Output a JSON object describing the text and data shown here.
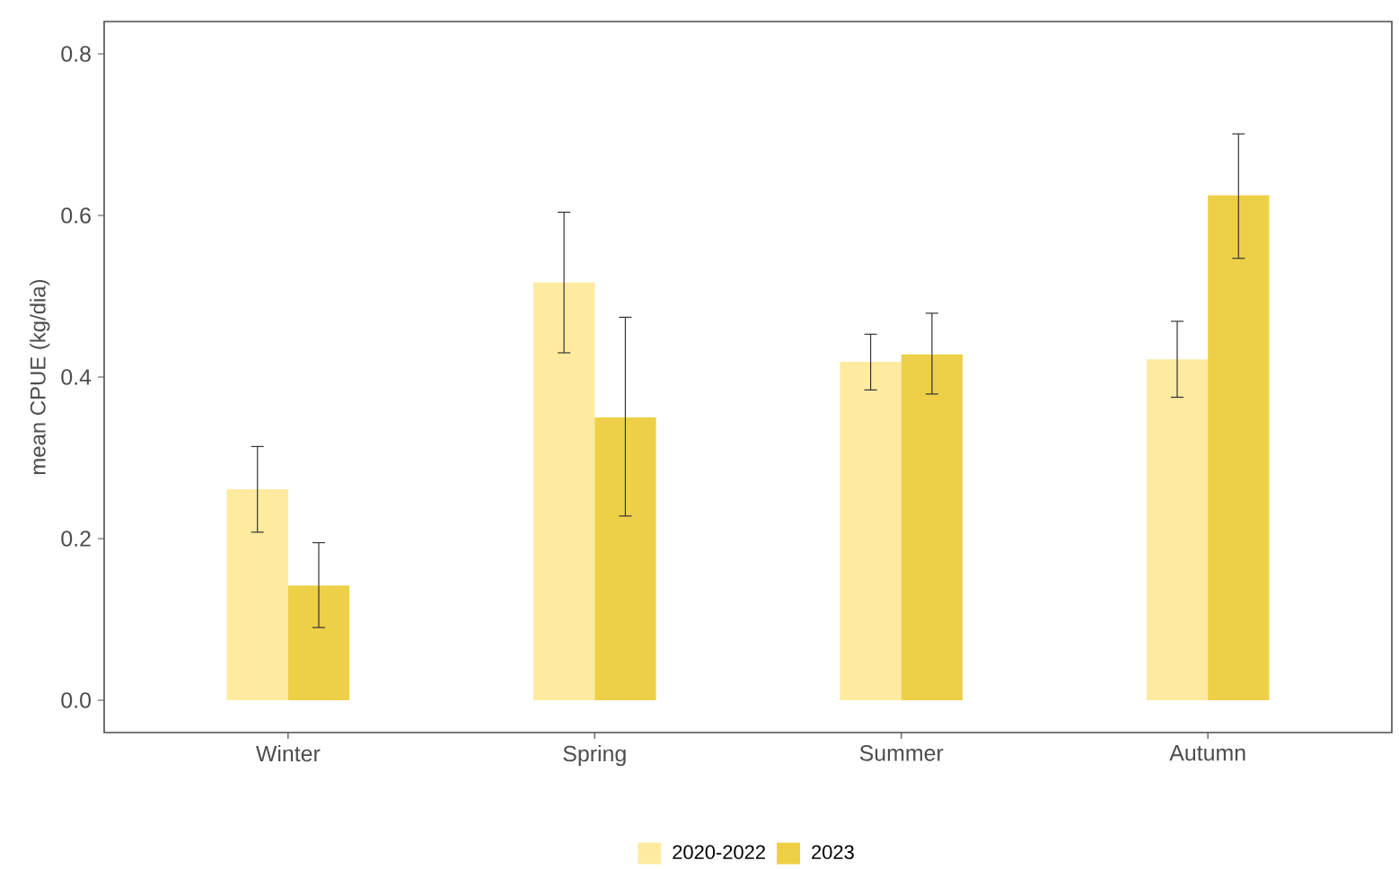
{
  "chart_data": {
    "type": "bar",
    "ylabel": "mean CPUE (kg/dia)",
    "categories": [
      "Winter",
      "Spring",
      "Summer",
      "Autumn"
    ],
    "series": [
      {
        "name": "2020-2022",
        "color": "#feeba0",
        "values": [
          0.261,
          0.517,
          0.419,
          0.422
        ],
        "errors": [
          [
            0.208,
            0.314
          ],
          [
            0.43,
            0.604
          ],
          [
            0.384,
            0.453
          ],
          [
            0.375,
            0.469
          ]
        ]
      },
      {
        "name": "2023",
        "color": "#eed048",
        "values": [
          0.142,
          0.35,
          0.428,
          0.625
        ],
        "errors": [
          [
            0.09,
            0.195
          ],
          [
            0.228,
            0.474
          ],
          [
            0.379,
            0.479
          ],
          [
            0.547,
            0.701
          ]
        ]
      }
    ],
    "ylim": [
      -0.04,
      0.84
    ],
    "yticks": [
      {
        "value": 0,
        "label": "0.0"
      },
      0.2,
      0.4,
      0.6,
      0.8
    ],
    "legend": "bottom",
    "grid": false
  }
}
